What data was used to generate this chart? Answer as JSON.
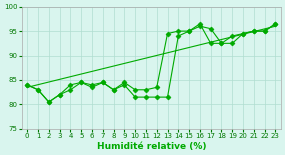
{
  "xlabel": "Humidité relative (%)",
  "xlim": [
    -0.5,
    23.5
  ],
  "ylim": [
    75,
    100
  ],
  "xticks": [
    0,
    1,
    2,
    3,
    4,
    5,
    6,
    7,
    8,
    9,
    10,
    11,
    12,
    13,
    14,
    15,
    16,
    17,
    18,
    19,
    20,
    21,
    22,
    23
  ],
  "yticks": [
    75,
    80,
    85,
    90,
    95,
    100
  ],
  "background_color": "#d9f5ee",
  "grid_color": "#b0ddd0",
  "line_color": "#00aa00",
  "line1_x": [
    0,
    1,
    2,
    3,
    4,
    5,
    6,
    7,
    8,
    9,
    10,
    11,
    12,
    13,
    14,
    15,
    16,
    17,
    18,
    19,
    20,
    21,
    22,
    23
  ],
  "line1_y": [
    84.0,
    83.0,
    80.5,
    82.0,
    83.0,
    84.5,
    83.5,
    84.5,
    83.0,
    84.0,
    81.5,
    81.5,
    81.5,
    81.5,
    94.0,
    95.0,
    96.0,
    95.5,
    92.5,
    92.5,
    94.5,
    95.0,
    95.0,
    96.5
  ],
  "line2_x": [
    0,
    1,
    2,
    3,
    4,
    5,
    6,
    7,
    8,
    9,
    10,
    11,
    12,
    13,
    14,
    15,
    16,
    17,
    18,
    19,
    20,
    21,
    22,
    23
  ],
  "line2_y": [
    84.0,
    83.0,
    80.5,
    82.0,
    84.0,
    84.5,
    84.0,
    84.5,
    83.0,
    84.5,
    83.0,
    83.0,
    83.5,
    94.5,
    95.0,
    95.0,
    96.5,
    92.5,
    92.5,
    94.0,
    94.5,
    95.0,
    95.0,
    96.5
  ],
  "trend_x": [
    0,
    23
  ],
  "trend_y": [
    83.5,
    96.0
  ],
  "marker": "D",
  "markersize": 2.5,
  "linewidth": 0.8,
  "xlabel_fontsize": 6.5,
  "tick_fontsize": 5.0
}
